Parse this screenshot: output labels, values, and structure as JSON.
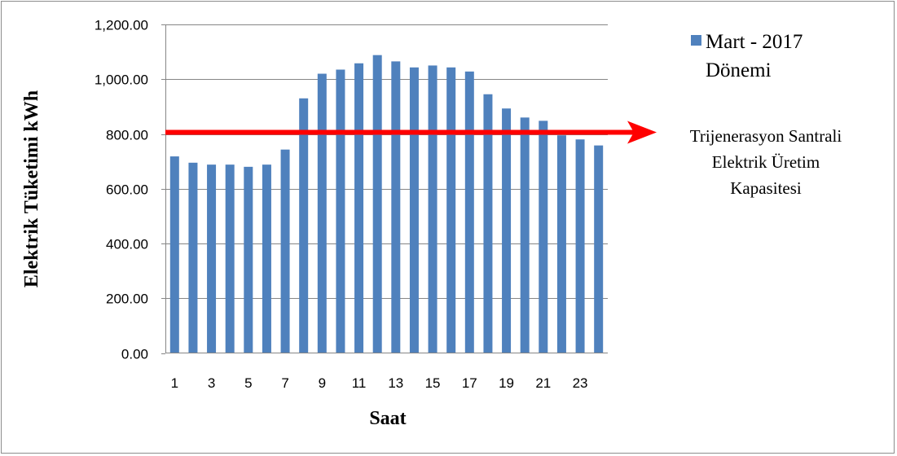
{
  "chart_data": {
    "type": "bar",
    "xlabel": "Saat",
    "ylabel": "Elektrik Tüketimi kWh",
    "ylim": [
      0,
      1200
    ],
    "y_ticks": [
      "0.00",
      "200.00",
      "400.00",
      "600.00",
      "800.00",
      "1,000.00",
      "1,200.00"
    ],
    "x_tick_labels": [
      "1",
      "3",
      "5",
      "7",
      "9",
      "11",
      "13",
      "15",
      "17",
      "19",
      "21",
      "23"
    ],
    "categories": [
      "1",
      "2",
      "3",
      "4",
      "5",
      "6",
      "7",
      "8",
      "9",
      "10",
      "11",
      "12",
      "13",
      "14",
      "15",
      "16",
      "17",
      "18",
      "19",
      "20",
      "21",
      "22",
      "23",
      "24"
    ],
    "series": [
      {
        "name": "Mart - 2017 Dönemi",
        "color": "#4f81bd",
        "values": [
          718,
          695,
          688,
          688,
          680,
          688,
          743,
          930,
          1020,
          1035,
          1058,
          1088,
          1065,
          1043,
          1050,
          1043,
          1028,
          945,
          893,
          860,
          848,
          795,
          780,
          758
        ]
      }
    ],
    "legend": {
      "position": "top-right",
      "line1": "Mart - 2017",
      "line2": "Dönemi"
    },
    "grid": true,
    "reference_line": {
      "value": 800,
      "color": "#ff0000",
      "label_lines": [
        "Trijenerasyon Santrali",
        "Elektrik Üretim",
        "Kapasitesi"
      ]
    }
  }
}
